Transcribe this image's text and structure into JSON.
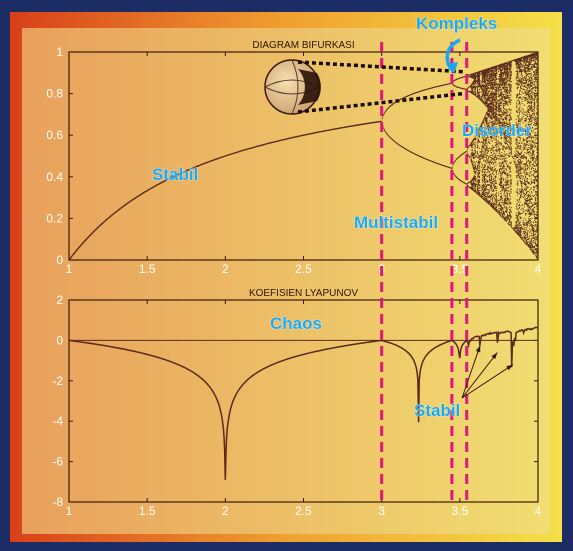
{
  "colors": {
    "panel_left": "#e8783a",
    "panel_right": "#f2d84a",
    "plot_bg_left": "#e7a15a",
    "plot_bg_right": "#f0dc70",
    "curve": "#5a2a1a",
    "dashed": "#e0187a",
    "annotation": "#1aa8ee"
  },
  "chart_data": [
    {
      "type": "scatter",
      "title": "DIAGRAM BIFURKASI",
      "xlim": [
        1,
        4
      ],
      "ylim": [
        0,
        1
      ],
      "x_ticks": [
        "1",
        "1.5",
        "2",
        "2.5",
        "3",
        "3.5",
        "4"
      ],
      "y_ticks": [
        "0",
        "0.2",
        "0.4",
        "0.6",
        "0.8",
        "1"
      ],
      "series": [
        {
          "x_range": [
            1,
            4
          ],
          "equation": "logistic map x(n+1) = r*x(n)*(1-x(n))"
        }
      ],
      "dashed_lines_x": [
        3,
        3.449,
        3.544
      ],
      "annotations": [
        "Stabil",
        "Multistabil",
        "Kompleks",
        "Disorder"
      ],
      "inset_icon": "magnifier-globe-icon"
    },
    {
      "type": "line",
      "title": "KOEFISIEN LYAPUNOV",
      "xlim": [
        1,
        4
      ],
      "ylim": [
        -8,
        2
      ],
      "x_ticks": [
        "1",
        "1.5",
        "2",
        "2.5",
        "3",
        "3.5",
        "4"
      ],
      "y_ticks": [
        "-8",
        "-6",
        "-4",
        "-2",
        "0",
        "2"
      ],
      "series": [
        {
          "x_range": [
            1,
            4
          ],
          "equation": "Lyapunov exponent of logistic map"
        }
      ],
      "dashed_lines_x": [
        3,
        3.449,
        3.544
      ],
      "annotations": [
        "Chaos",
        "Stabil"
      ]
    }
  ]
}
